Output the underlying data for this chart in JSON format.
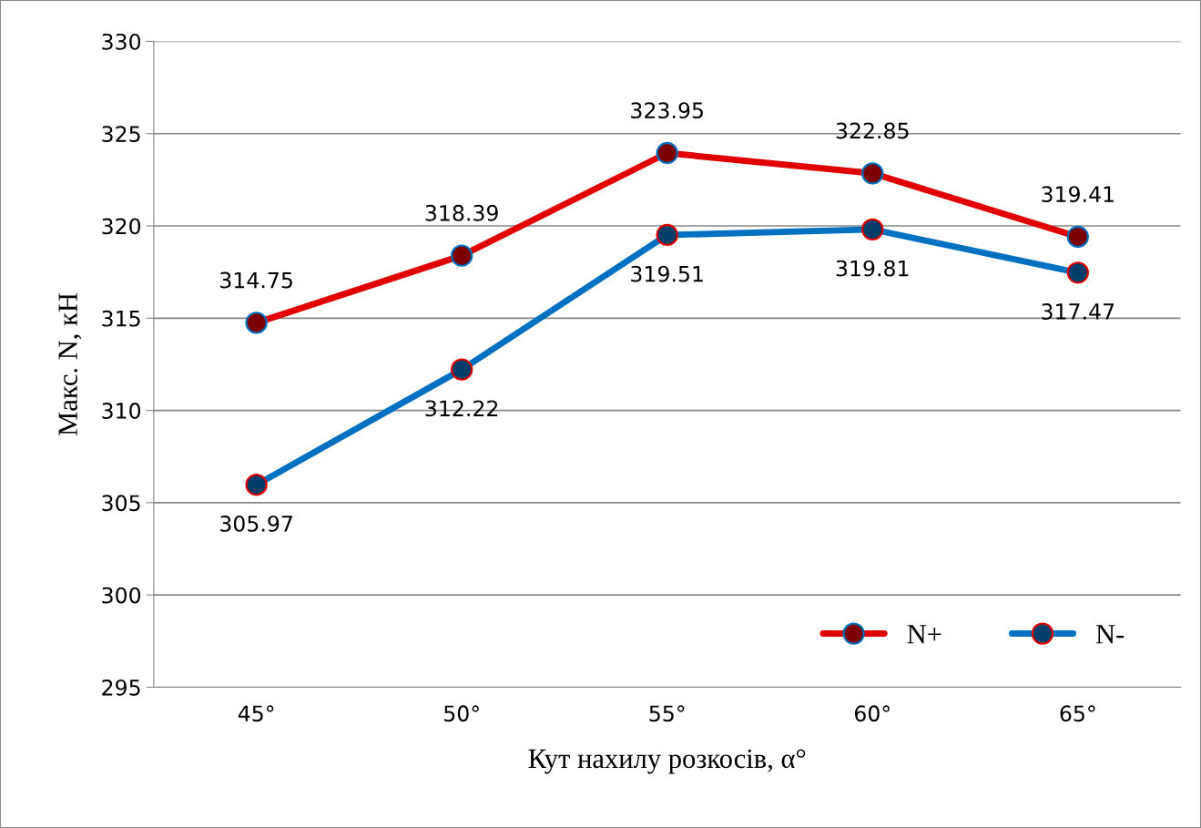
{
  "chart_data": {
    "type": "line",
    "xlabel": "Кут нахилу розкосів, α°",
    "ylabel": "Макс. N, кН",
    "categories": [
      "45°",
      "50°",
      "55°",
      "60°",
      "65°"
    ],
    "series": [
      {
        "name": "N+",
        "color": "#e00000",
        "values": [
          314.75,
          318.39,
          323.95,
          322.85,
          319.41
        ]
      },
      {
        "name": "N-",
        "color": "#0070c0",
        "values": [
          305.97,
          312.22,
          319.51,
          319.81,
          317.47
        ]
      }
    ],
    "ylim": [
      295,
      330
    ],
    "yticks": [
      295,
      300,
      305,
      310,
      315,
      320,
      325,
      330
    ],
    "grid": "y",
    "legend": "bottom right",
    "marker": "circle",
    "line_style": "solid",
    "data_labels": true
  }
}
